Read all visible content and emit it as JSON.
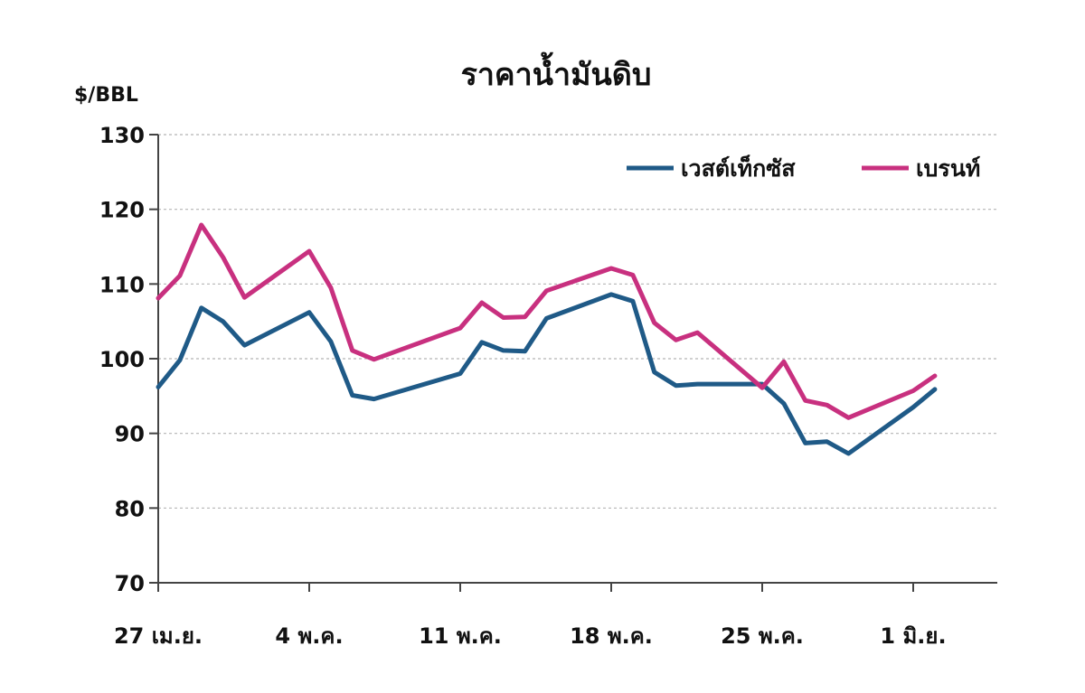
{
  "chart_data": {
    "type": "line",
    "title": "ราคาน้ำมันดิบ",
    "ylabel": "$/BBL",
    "xlabel": "",
    "ylim": [
      70,
      130
    ],
    "yticks": [
      70,
      80,
      90,
      100,
      110,
      120,
      130
    ],
    "grid": true,
    "legend_position": "top-right",
    "x_tick_labels": [
      "27 เม.ย.",
      "4 พ.ค.",
      "11 พ.ค.",
      "18 พ.ค.",
      "25 พ.ค.",
      "1 มิ.ย."
    ],
    "x_tick_dates": [
      "2022-04-27",
      "2022-05-04",
      "2022-05-11",
      "2022-05-18",
      "2022-05-25",
      "2022-06-01"
    ],
    "x": [
      "2022-04-27",
      "2022-04-28",
      "2022-04-29",
      "2022-04-30",
      "2022-05-01",
      "2022-05-04",
      "2022-05-05",
      "2022-05-06",
      "2022-05-07",
      "2022-05-11",
      "2022-05-12",
      "2022-05-13",
      "2022-05-14",
      "2022-05-15",
      "2022-05-18",
      "2022-05-19",
      "2022-05-20",
      "2022-05-21",
      "2022-05-22",
      "2022-05-25",
      "2022-05-26",
      "2022-05-27",
      "2022-05-28",
      "2022-05-29",
      "2022-06-01",
      "2022-06-02"
    ],
    "series": [
      {
        "name": "เวสต์เท็กซัส",
        "color": "#1f5a87",
        "values": [
          96.2,
          99.8,
          106.8,
          105.0,
          101.8,
          106.2,
          102.3,
          95.1,
          94.6,
          98.0,
          102.2,
          101.1,
          101.0,
          105.4,
          108.6,
          107.7,
          98.2,
          96.4,
          96.6,
          96.6,
          94.0,
          88.7,
          88.9,
          87.3,
          93.5,
          95.9
        ]
      },
      {
        "name": "เบรนท์",
        "color": "#c8307f",
        "values": [
          108.1,
          111.1,
          117.9,
          113.6,
          108.2,
          114.4,
          109.5,
          101.1,
          99.9,
          104.1,
          107.5,
          105.5,
          105.6,
          109.1,
          112.1,
          111.2,
          104.8,
          102.5,
          103.5,
          96.1,
          99.6,
          94.4,
          93.8,
          92.1,
          95.7,
          97.7
        ]
      }
    ]
  }
}
